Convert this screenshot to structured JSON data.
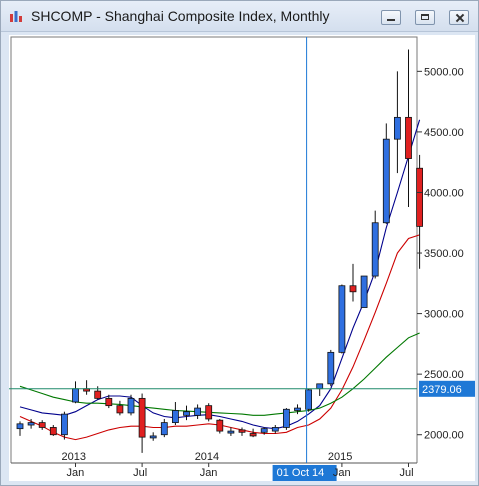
{
  "window": {
    "title": "SHCOMP - Shanghai Composite Index, Monthly",
    "icons": [
      "app-chart-icon",
      "minimize-icon",
      "maximize-icon",
      "close-icon"
    ]
  },
  "chart_data": {
    "type": "candlestick",
    "symbol": "SHCOMP",
    "title": "SHCOMP - Shanghai Composite Index, Monthly",
    "period": "Monthly",
    "ylim": [
      1750,
      5300
    ],
    "y_ticks": [
      2000,
      2500,
      3000,
      3500,
      4000,
      4500,
      5000
    ],
    "y_tick_labels": [
      "2000.00",
      "2500.00",
      "3000.00",
      "3500.00",
      "4000.00",
      "4500.00",
      "5000.00"
    ],
    "x_labels": [
      {
        "text": "2013",
        "index": 5
      },
      {
        "text": "Jan",
        "index": 5
      },
      {
        "text": "Jul",
        "index": 11
      },
      {
        "text": "2014",
        "index": 17
      },
      {
        "text": "Jan",
        "index": 17
      },
      {
        "text": "2015",
        "index": 29
      },
      {
        "text": "Jan",
        "index": 29
      },
      {
        "text": "Jul",
        "index": 35
      }
    ],
    "crosshair": {
      "index": 26,
      "x_label": "01 Oct 14",
      "y_value": 2379.06,
      "y_label": "2379.06"
    },
    "candles": [
      {
        "o": 2050,
        "h": 2110,
        "l": 1990,
        "c": 2090
      },
      {
        "o": 2080,
        "h": 2130,
        "l": 2050,
        "c": 2100
      },
      {
        "o": 2100,
        "h": 2120,
        "l": 2040,
        "c": 2060
      },
      {
        "o": 2060,
        "h": 2080,
        "l": 1990,
        "c": 2000
      },
      {
        "o": 2000,
        "h": 2190,
        "l": 1960,
        "c": 2170
      },
      {
        "o": 2270,
        "h": 2440,
        "l": 2260,
        "c": 2380
      },
      {
        "o": 2380,
        "h": 2450,
        "l": 2330,
        "c": 2360
      },
      {
        "o": 2360,
        "h": 2400,
        "l": 2290,
        "c": 2300
      },
      {
        "o": 2300,
        "h": 2330,
        "l": 2220,
        "c": 2240
      },
      {
        "o": 2240,
        "h": 2280,
        "l": 2160,
        "c": 2180
      },
      {
        "o": 2180,
        "h": 2330,
        "l": 2160,
        "c": 2300
      },
      {
        "o": 2300,
        "h": 2340,
        "l": 1850,
        "c": 1980
      },
      {
        "o": 1980,
        "h": 2020,
        "l": 1950,
        "c": 1990
      },
      {
        "o": 2000,
        "h": 2130,
        "l": 1980,
        "c": 2100
      },
      {
        "o": 2100,
        "h": 2270,
        "l": 2080,
        "c": 2200
      },
      {
        "o": 2160,
        "h": 2240,
        "l": 2120,
        "c": 2190
      },
      {
        "o": 2160,
        "h": 2250,
        "l": 2130,
        "c": 2220
      },
      {
        "o": 2240,
        "h": 2260,
        "l": 2110,
        "c": 2130
      },
      {
        "o": 2120,
        "h": 2130,
        "l": 2010,
        "c": 2030
      },
      {
        "o": 2020,
        "h": 2060,
        "l": 1990,
        "c": 2030
      },
      {
        "o": 2040,
        "h": 2060,
        "l": 1990,
        "c": 2020
      },
      {
        "o": 2010,
        "h": 2050,
        "l": 1980,
        "c": 1990
      },
      {
        "o": 2020,
        "h": 2060,
        "l": 2000,
        "c": 2050
      },
      {
        "o": 2030,
        "h": 2080,
        "l": 2010,
        "c": 2060
      },
      {
        "o": 2060,
        "h": 2220,
        "l": 2040,
        "c": 2210
      },
      {
        "o": 2200,
        "h": 2250,
        "l": 2170,
        "c": 2220
      },
      {
        "o": 2210,
        "h": 2380,
        "l": 2190,
        "c": 2370
      },
      {
        "o": 2380,
        "h": 2420,
        "l": 2320,
        "c": 2420
      },
      {
        "o": 2420,
        "h": 2700,
        "l": 2400,
        "c": 2680
      },
      {
        "o": 2680,
        "h": 3240,
        "l": 2670,
        "c": 3230
      },
      {
        "o": 3230,
        "h": 3410,
        "l": 3100,
        "c": 3180
      },
      {
        "o": 3050,
        "h": 3290,
        "l": 3050,
        "c": 3310
      },
      {
        "o": 3310,
        "h": 3850,
        "l": 3290,
        "c": 3750
      },
      {
        "o": 3750,
        "h": 4570,
        "l": 3740,
        "c": 4440
      },
      {
        "o": 4440,
        "h": 5000,
        "l": 4160,
        "c": 4620
      },
      {
        "o": 4620,
        "h": 5180,
        "l": 3880,
        "c": 4280
      },
      {
        "o": 4200,
        "h": 4310,
        "l": 3370,
        "c": 3720
      }
    ],
    "ma_series": [
      {
        "color": "#00008c",
        "values": [
          2230,
          2205,
          2180,
          2170,
          2160,
          2190,
          2240,
          2290,
          2320,
          2320,
          2310,
          2240,
          2180,
          2150,
          2140,
          2150,
          2160,
          2165,
          2150,
          2130,
          2110,
          2080,
          2060,
          2050,
          2070,
          2110,
          2170,
          2240,
          2380,
          2630,
          2880,
          3100,
          3350,
          3710,
          4000,
          4300,
          4600
        ]
      },
      {
        "color": "#cc0000",
        "values": [
          2150,
          2110,
          2070,
          2020,
          1980,
          1960,
          1980,
          2010,
          2040,
          2060,
          2070,
          2070,
          2060,
          2060,
          2070,
          2070,
          2080,
          2090,
          2080,
          2060,
          2040,
          2020,
          2010,
          2010,
          2020,
          2060,
          2080,
          2130,
          2220,
          2370,
          2560,
          2780,
          3010,
          3250,
          3500,
          3620,
          3650
        ]
      },
      {
        "color": "#007800",
        "values": [
          2400,
          2370,
          2340,
          2310,
          2290,
          2270,
          2260,
          2260,
          2255,
          2250,
          2240,
          2230,
          2220,
          2210,
          2200,
          2195,
          2190,
          2185,
          2180,
          2175,
          2170,
          2160,
          2160,
          2170,
          2180,
          2190,
          2200,
          2220,
          2260,
          2310,
          2380,
          2460,
          2550,
          2640,
          2720,
          2800,
          2840
        ]
      }
    ]
  }
}
